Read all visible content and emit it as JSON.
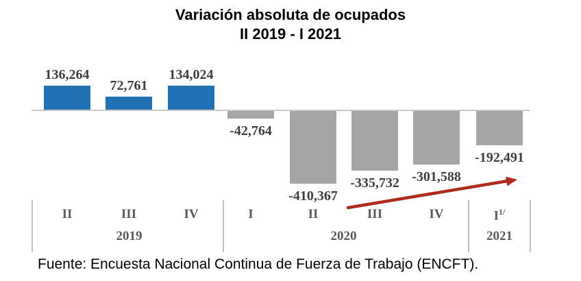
{
  "title": {
    "line1": "Variación absoluta de ocupados",
    "line2": "II 2019 - I 2021"
  },
  "source": "Fuente: Encuesta Nacional Continua de Fuerza de Trabajo (ENCFT).",
  "chart_data": {
    "type": "bar",
    "title": "Variación absoluta de ocupados",
    "subtitle": "II 2019 - I 2021",
    "categories": [
      "II 2019",
      "III 2019",
      "IV 2019",
      "I 2020",
      "II 2020",
      "III 2020",
      "IV 2020",
      "I 2021"
    ],
    "quarter_labels": [
      {
        "text": "II"
      },
      {
        "text": "III"
      },
      {
        "text": "IV"
      },
      {
        "text": "I"
      },
      {
        "text": "II"
      },
      {
        "text": "III"
      },
      {
        "text": "IV"
      },
      {
        "text": "I",
        "footnote": "1/"
      }
    ],
    "values": [
      136264,
      72761,
      134024,
      -42764,
      -410367,
      -335732,
      -301588,
      -192491
    ],
    "value_labels": [
      "136,264",
      "72,761",
      "134,024",
      "-42,764",
      "-410,367",
      "-335,732",
      "-301,588",
      "-192,491"
    ],
    "year_groups": [
      {
        "label": "2019",
        "from": 0,
        "to": 2
      },
      {
        "label": "2020",
        "from": 3,
        "to": 6
      },
      {
        "label": "2021",
        "from": 7,
        "to": 7
      }
    ],
    "ylim": [
      -450000,
      180000
    ],
    "gridlines": false,
    "legend": "none",
    "colors": {
      "positive_bar": "#2271b5",
      "negative_bar": "#a6a6a6",
      "zero_line": "#c9c9c9",
      "value_label_text": "#3d3d3d",
      "axis_label_text": "#595959",
      "arrow": "#ae2a1a"
    },
    "annotation": {
      "type": "trend-arrow",
      "from_category": "II 2020",
      "to_category": "I 2021",
      "color": "#ae2a1a"
    }
  }
}
